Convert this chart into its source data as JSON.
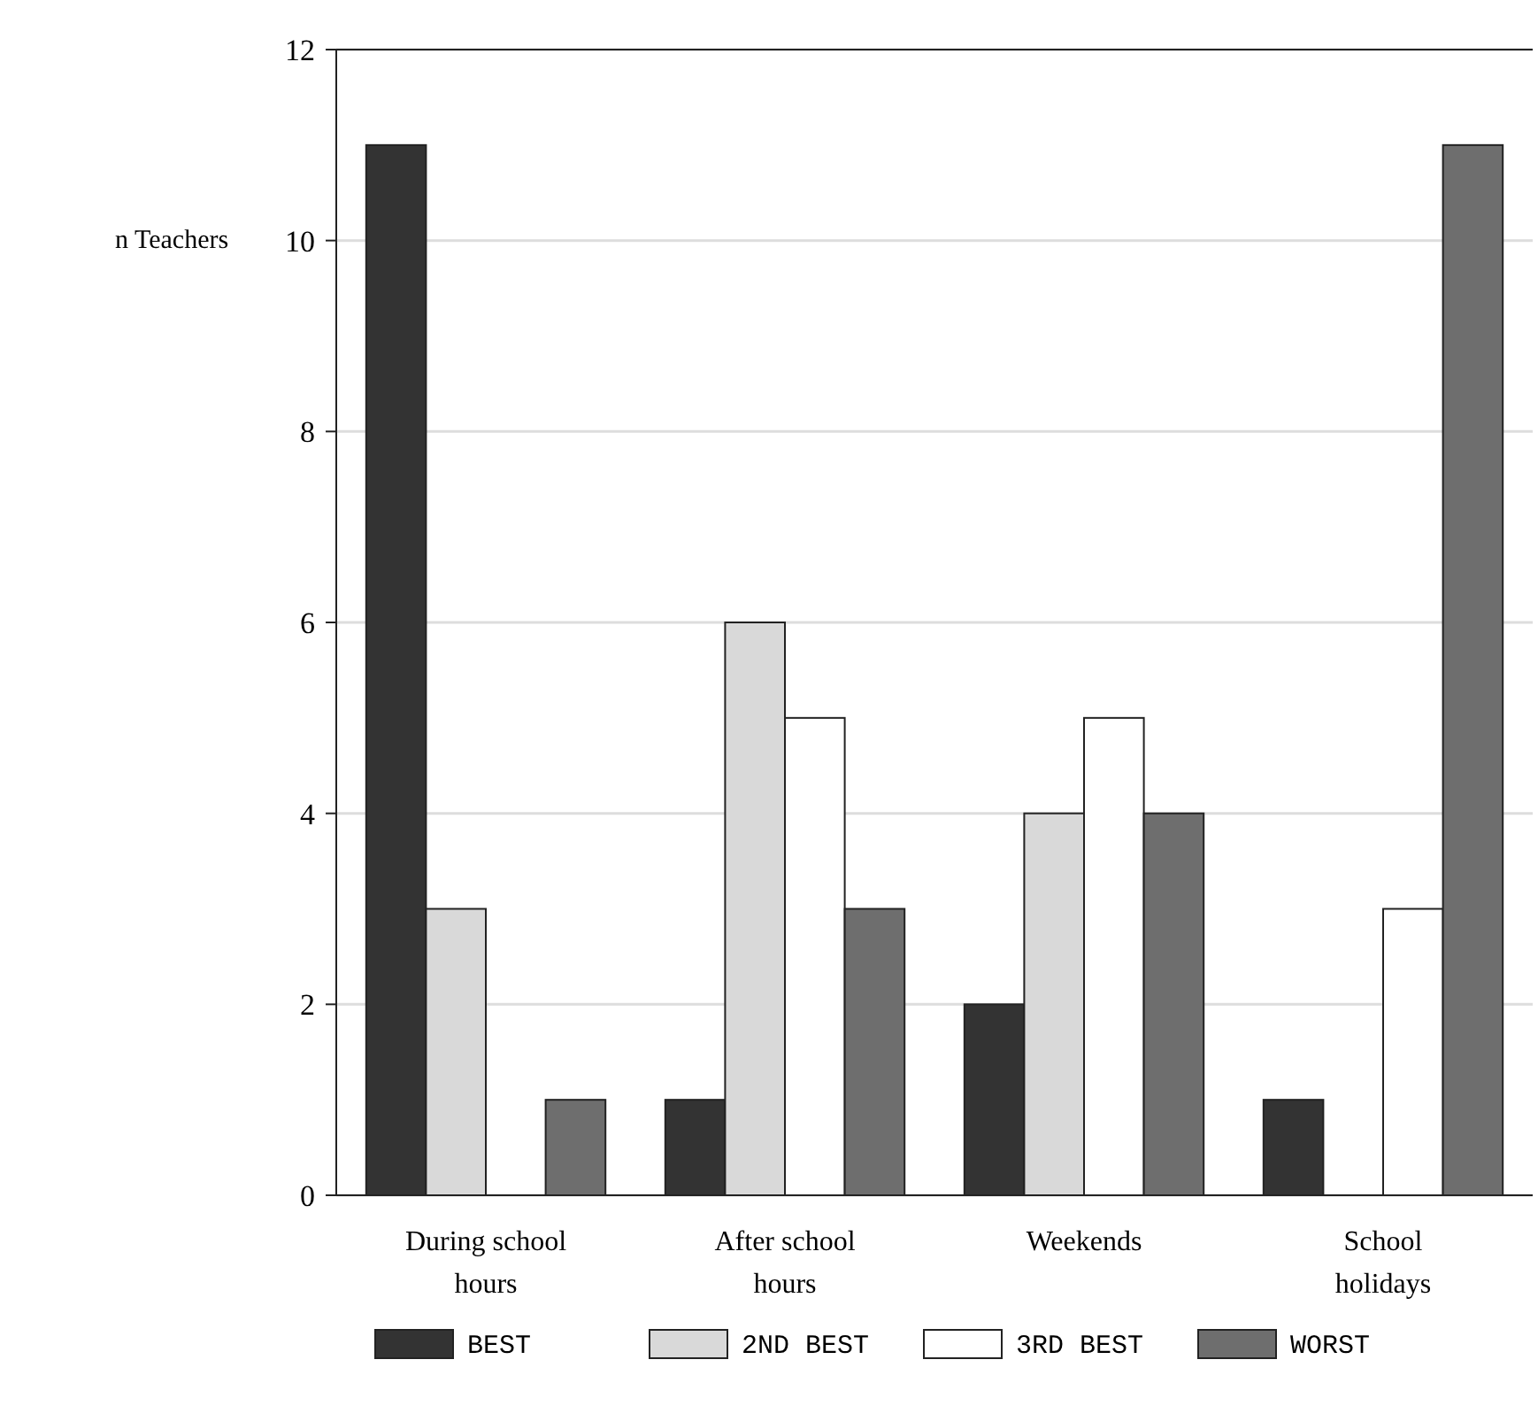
{
  "chart_data": {
    "type": "bar",
    "ylabel": "n Teachers",
    "categories": [
      "During school hours",
      "After school hours",
      "Weekends",
      "School holidays"
    ],
    "series": [
      {
        "name": "BEST",
        "color": "#333333",
        "values": [
          11,
          1,
          2,
          1
        ]
      },
      {
        "name": "2ND BEST",
        "color": "#d9d9d9",
        "values": [
          3,
          6,
          4,
          0
        ]
      },
      {
        "name": "3RD BEST",
        "color": "#ffffff",
        "values": [
          0,
          5,
          5,
          3
        ]
      },
      {
        "name": "WORST",
        "color": "#6e6e6e",
        "values": [
          1,
          3,
          4,
          11
        ]
      }
    ],
    "ylim": [
      0,
      12
    ],
    "yticks": [
      0,
      2,
      4,
      6,
      8,
      10,
      12
    ],
    "grid": "y",
    "legend": "bottom"
  }
}
